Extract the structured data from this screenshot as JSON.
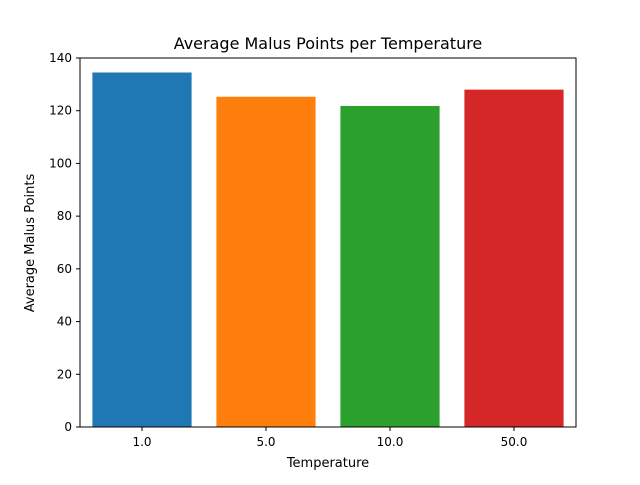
{
  "chart_data": {
    "type": "bar",
    "title": "Average Malus Points per Temperature",
    "xlabel": "Temperature",
    "ylabel": "Average Malus Points",
    "categories": [
      "1.0",
      "5.0",
      "10.0",
      "50.0"
    ],
    "values": [
      134.5,
      125.3,
      121.8,
      128.0
    ],
    "colors": [
      "#1f77b4",
      "#ff7f0e",
      "#2ca02c",
      "#d62728"
    ],
    "ylim": [
      0,
      140
    ],
    "yticks": [
      0,
      20,
      40,
      60,
      80,
      100,
      120,
      140
    ],
    "grid": false,
    "legend": false
  }
}
